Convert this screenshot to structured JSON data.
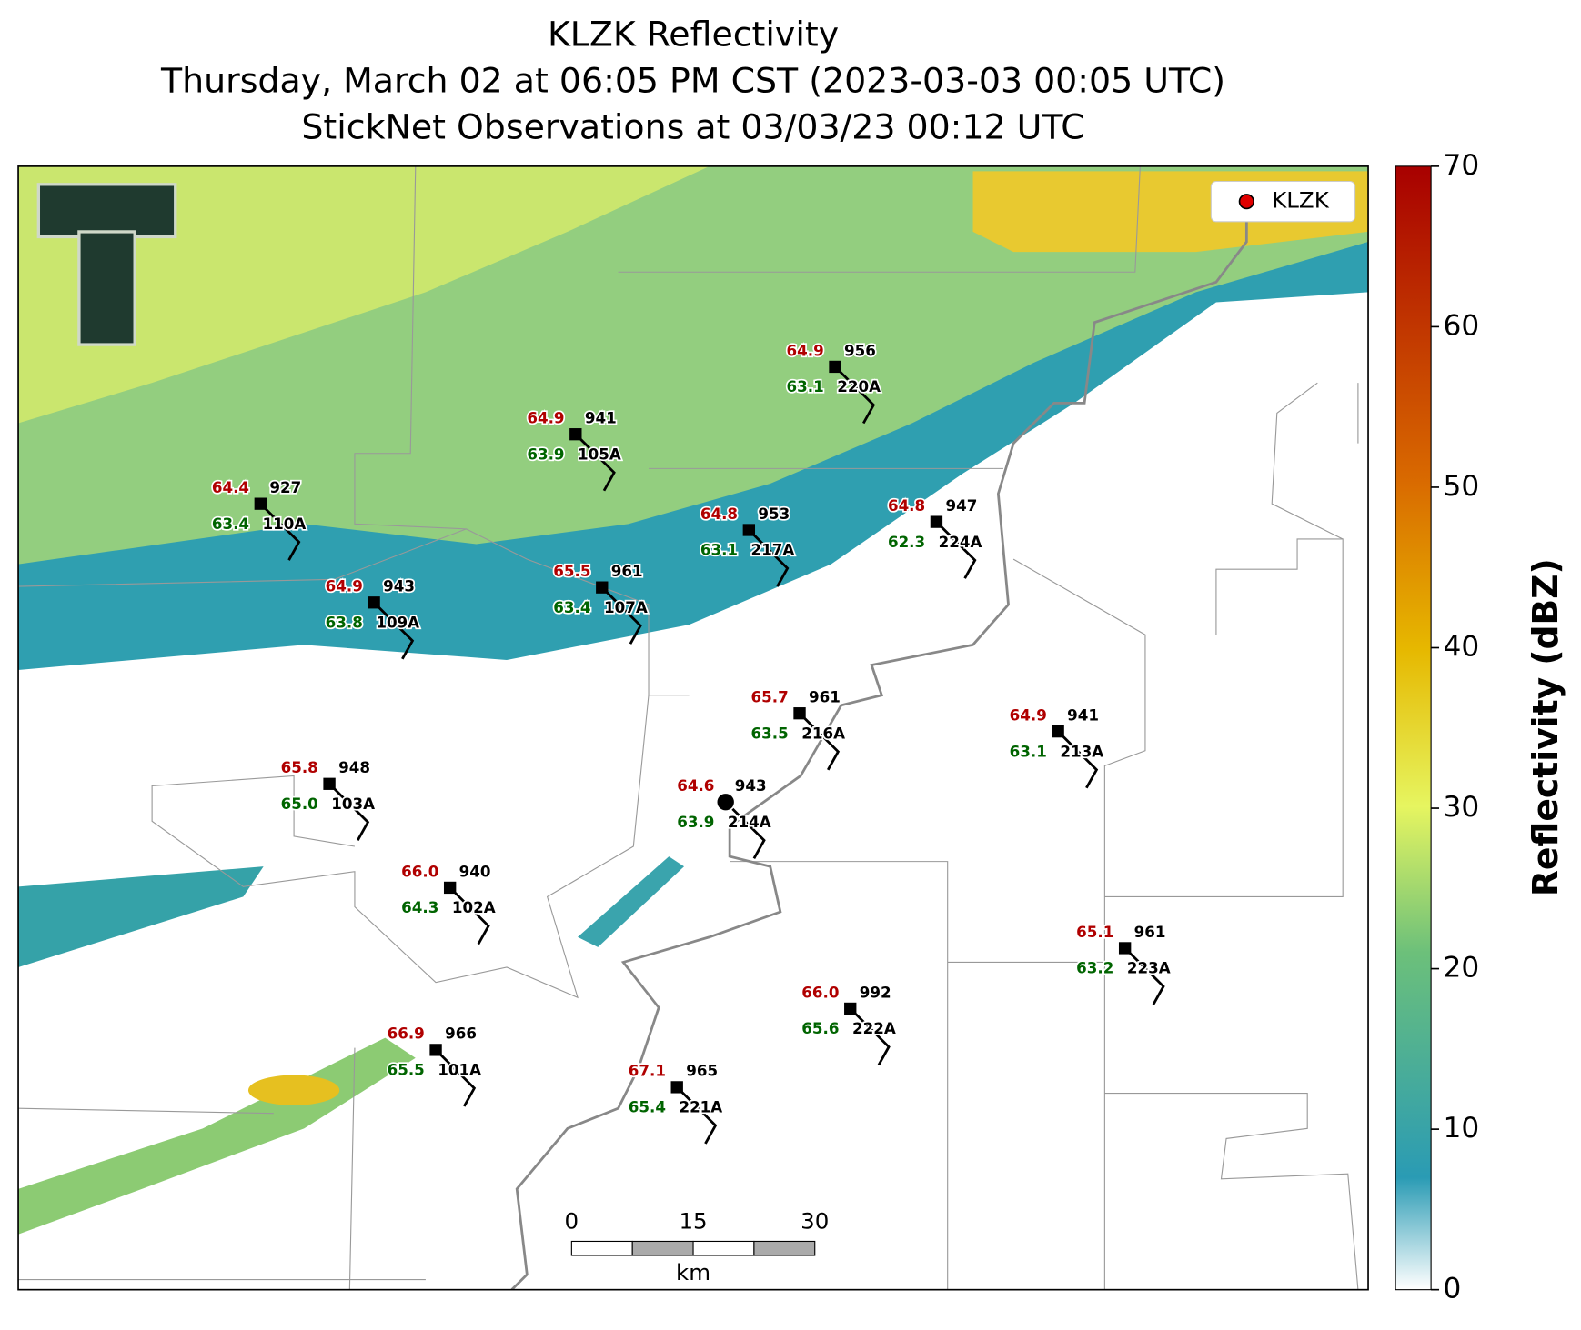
{
  "header": {
    "title_lines": [
      "KLZK Reflectivity",
      "Thursday, March 02 at 06:05 PM CST (2023-03-03 00:05 UTC)",
      "StickNet Observations at 03/03/23 00:12 UTC"
    ]
  },
  "map": {
    "legend": {
      "label": "KLZK",
      "color": "#e00000"
    },
    "stations": [
      {
        "name": "110A",
        "temperature": "64.4",
        "dewpoint": "63.4",
        "pressure": 927
      },
      {
        "name": "109A",
        "temperature": "64.9",
        "dewpoint": "63.8",
        "pressure": 943
      },
      {
        "name": "105A",
        "temperature": "64.9",
        "dewpoint": "63.9",
        "pressure": 941
      },
      {
        "name": "107A",
        "temperature": "65.5",
        "dewpoint": "63.4",
        "pressure": 961
      },
      {
        "name": "220A",
        "temperature": "64.9",
        "dewpoint": "63.1",
        "pressure": 956
      },
      {
        "name": "217A",
        "temperature": "64.8",
        "dewpoint": "63.1",
        "pressure": 953
      },
      {
        "name": "224A",
        "temperature": "64.8",
        "dewpoint": "62.3",
        "pressure": 947
      },
      {
        "name": "216A",
        "temperature": "65.7",
        "dewpoint": "63.5",
        "pressure": 961
      },
      {
        "name": "213A",
        "temperature": "64.9",
        "dewpoint": "63.1",
        "pressure": 941
      },
      {
        "name": "103A",
        "temperature": "65.8",
        "dewpoint": "65.0",
        "pressure": 948
      },
      {
        "name": "214A",
        "temperature": "64.6",
        "dewpoint": "63.9",
        "pressure": 943
      },
      {
        "name": "102A",
        "temperature": "66.0",
        "dewpoint": "64.3",
        "pressure": 940
      },
      {
        "name": "223A",
        "temperature": "65.1",
        "dewpoint": "63.2",
        "pressure": 961
      },
      {
        "name": "222A",
        "temperature": "66.0",
        "dewpoint": "65.6",
        "pressure": 992
      },
      {
        "name": "101A",
        "temperature": "66.9",
        "dewpoint": "65.5",
        "pressure": 966
      },
      {
        "name": "221A",
        "temperature": "67.1",
        "dewpoint": "65.4",
        "pressure": 965
      }
    ],
    "scale_bar": {
      "ticks": [
        0,
        15,
        30
      ],
      "unit": "km"
    }
  },
  "colorbar": {
    "label": "Reflectivity (dBZ)",
    "lim": [
      0,
      70
    ],
    "ticks": [
      0,
      10,
      20,
      30,
      40,
      50,
      60,
      70
    ]
  }
}
